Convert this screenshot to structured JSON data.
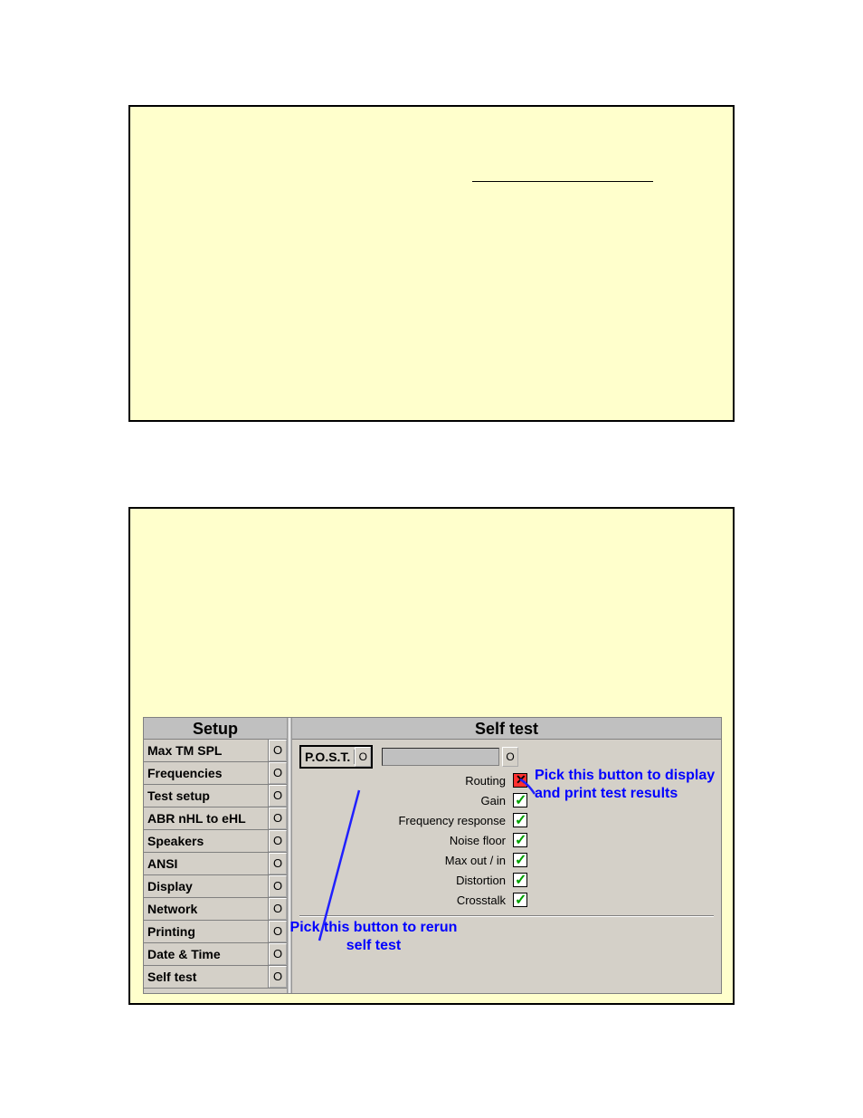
{
  "top_panel": {
    "underline_present": true
  },
  "bottom_panel": {
    "setup_header": "Setup",
    "main_header": "Self test",
    "setup_items": [
      "Max TM SPL",
      "Frequencies",
      "Test setup",
      "ABR nHL to eHL",
      "Speakers",
      "ANSI",
      "Display",
      "Network",
      "Printing",
      "Date & Time",
      "Self test"
    ],
    "post_label": "P.O.S.T.",
    "tests": [
      {
        "label": "Routing",
        "status": "fail"
      },
      {
        "label": "Gain",
        "status": "pass"
      },
      {
        "label": "Frequency response",
        "status": "pass"
      },
      {
        "label": "Noise floor",
        "status": "pass"
      },
      {
        "label": "Max out / in",
        "status": "pass"
      },
      {
        "label": "Distortion",
        "status": "pass"
      },
      {
        "label": "Crosstalk",
        "status": "pass"
      }
    ],
    "callout_print": "Pick this button to display and print test results",
    "callout_rerun": "Pick this button to rerun self test",
    "colors": {
      "panel_bg": "#ffffcc",
      "ui_bg": "#d4d0c8",
      "header_bg": "#c0c0c0",
      "callout_color": "#0000ff",
      "fail_bg": "#ff3030",
      "pass_color": "#00a000",
      "line_color": "#2020ff"
    }
  }
}
